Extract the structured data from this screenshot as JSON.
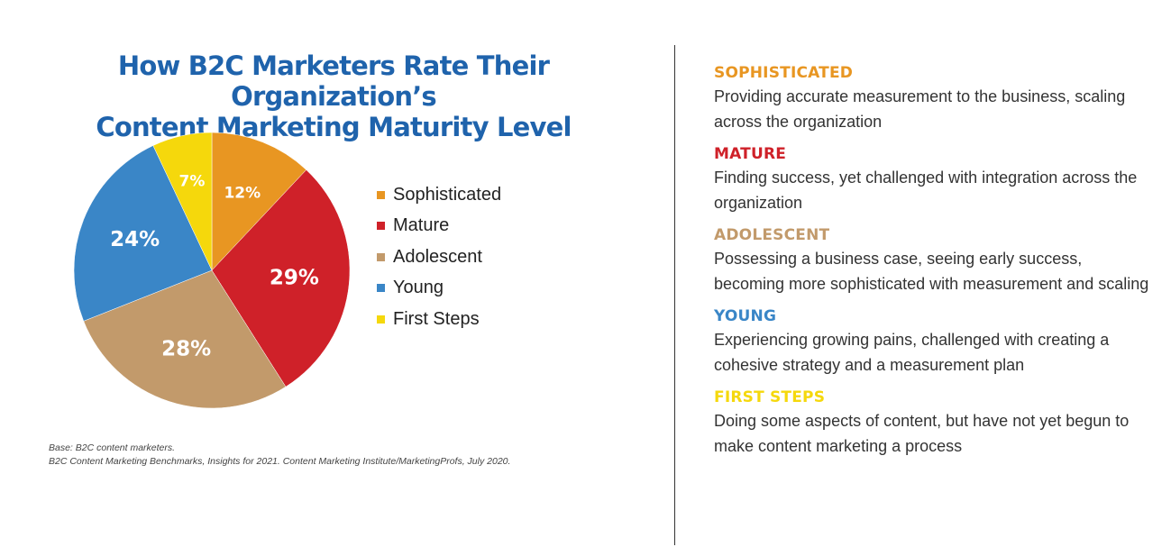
{
  "chart_data": {
    "type": "pie",
    "title": "How B2C Marketers Rate Their Organization’s Content Marketing Maturity Level",
    "title_lines": [
      "How B2C Marketers Rate Their Organization’s",
      "Content Marketing Maturity Level"
    ],
    "categories": [
      "Sophisticated",
      "Mature",
      "Adolescent",
      "Young",
      "First Steps"
    ],
    "values": [
      12,
      29,
      28,
      24,
      7
    ],
    "labels": [
      "12%",
      "29%",
      "28%",
      "24%",
      "7%"
    ],
    "colors": [
      "#e89622",
      "#cf2129",
      "#c29a6b",
      "#3a86c7",
      "#f5d80c"
    ],
    "legend": "right",
    "unit": "%"
  },
  "footnote": {
    "base": "Base: B2C content marketers.",
    "source": "B2C Content Marketing Benchmarks, Insights for 2021. Content Marketing Institute/MarketingProfs, July 2020."
  },
  "definitions": [
    {
      "title": "SOPHISTICATED",
      "color": "#e89622",
      "text": "Providing accurate measurement to the business, scaling across the organization"
    },
    {
      "title": "MATURE",
      "color": "#cf2129",
      "text": "Finding success, yet challenged with integration across the organization"
    },
    {
      "title": "ADOLESCENT",
      "color": "#c29a6b",
      "text": "Possessing a business case, seeing early success, becoming more sophisticated with measurement and scaling"
    },
    {
      "title": "YOUNG",
      "color": "#3a86c7",
      "text": "Experiencing growing pains, challenged with creating a cohesive strategy and a measurement plan"
    },
    {
      "title": "FIRST STEPS",
      "color": "#f5d80c",
      "text": "Doing some aspects of content, but have not yet begun to make content marketing a process"
    }
  ]
}
